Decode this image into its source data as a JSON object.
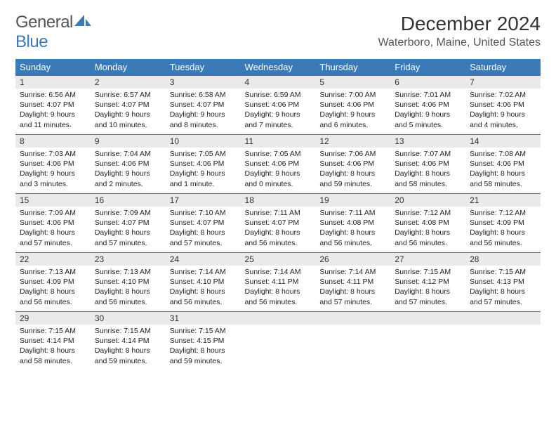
{
  "logo": {
    "text1": "General",
    "text2": "Blue"
  },
  "title": "December 2024",
  "location": "Waterboro, Maine, United States",
  "colors": {
    "header_bg": "#3a7ab8",
    "header_text": "#ffffff",
    "daynum_bg": "#e8eaec",
    "border": "#3a7ab8",
    "body_text": "#222222",
    "logo_gray": "#555555",
    "logo_blue": "#3a7ab8"
  },
  "fonts": {
    "title_size": 28,
    "location_size": 16,
    "header_size": 13,
    "cell_size": 10.5
  },
  "days_of_week": [
    "Sunday",
    "Monday",
    "Tuesday",
    "Wednesday",
    "Thursday",
    "Friday",
    "Saturday"
  ],
  "weeks": [
    [
      {
        "n": "1",
        "sr": "6:56 AM",
        "ss": "4:07 PM",
        "dl": "9 hours and 11 minutes."
      },
      {
        "n": "2",
        "sr": "6:57 AM",
        "ss": "4:07 PM",
        "dl": "9 hours and 10 minutes."
      },
      {
        "n": "3",
        "sr": "6:58 AM",
        "ss": "4:07 PM",
        "dl": "9 hours and 8 minutes."
      },
      {
        "n": "4",
        "sr": "6:59 AM",
        "ss": "4:06 PM",
        "dl": "9 hours and 7 minutes."
      },
      {
        "n": "5",
        "sr": "7:00 AM",
        "ss": "4:06 PM",
        "dl": "9 hours and 6 minutes."
      },
      {
        "n": "6",
        "sr": "7:01 AM",
        "ss": "4:06 PM",
        "dl": "9 hours and 5 minutes."
      },
      {
        "n": "7",
        "sr": "7:02 AM",
        "ss": "4:06 PM",
        "dl": "9 hours and 4 minutes."
      }
    ],
    [
      {
        "n": "8",
        "sr": "7:03 AM",
        "ss": "4:06 PM",
        "dl": "9 hours and 3 minutes."
      },
      {
        "n": "9",
        "sr": "7:04 AM",
        "ss": "4:06 PM",
        "dl": "9 hours and 2 minutes."
      },
      {
        "n": "10",
        "sr": "7:05 AM",
        "ss": "4:06 PM",
        "dl": "9 hours and 1 minute."
      },
      {
        "n": "11",
        "sr": "7:05 AM",
        "ss": "4:06 PM",
        "dl": "9 hours and 0 minutes."
      },
      {
        "n": "12",
        "sr": "7:06 AM",
        "ss": "4:06 PM",
        "dl": "8 hours and 59 minutes."
      },
      {
        "n": "13",
        "sr": "7:07 AM",
        "ss": "4:06 PM",
        "dl": "8 hours and 58 minutes."
      },
      {
        "n": "14",
        "sr": "7:08 AM",
        "ss": "4:06 PM",
        "dl": "8 hours and 58 minutes."
      }
    ],
    [
      {
        "n": "15",
        "sr": "7:09 AM",
        "ss": "4:06 PM",
        "dl": "8 hours and 57 minutes."
      },
      {
        "n": "16",
        "sr": "7:09 AM",
        "ss": "4:07 PM",
        "dl": "8 hours and 57 minutes."
      },
      {
        "n": "17",
        "sr": "7:10 AM",
        "ss": "4:07 PM",
        "dl": "8 hours and 57 minutes."
      },
      {
        "n": "18",
        "sr": "7:11 AM",
        "ss": "4:07 PM",
        "dl": "8 hours and 56 minutes."
      },
      {
        "n": "19",
        "sr": "7:11 AM",
        "ss": "4:08 PM",
        "dl": "8 hours and 56 minutes."
      },
      {
        "n": "20",
        "sr": "7:12 AM",
        "ss": "4:08 PM",
        "dl": "8 hours and 56 minutes."
      },
      {
        "n": "21",
        "sr": "7:12 AM",
        "ss": "4:09 PM",
        "dl": "8 hours and 56 minutes."
      }
    ],
    [
      {
        "n": "22",
        "sr": "7:13 AM",
        "ss": "4:09 PM",
        "dl": "8 hours and 56 minutes."
      },
      {
        "n": "23",
        "sr": "7:13 AM",
        "ss": "4:10 PM",
        "dl": "8 hours and 56 minutes."
      },
      {
        "n": "24",
        "sr": "7:14 AM",
        "ss": "4:10 PM",
        "dl": "8 hours and 56 minutes."
      },
      {
        "n": "25",
        "sr": "7:14 AM",
        "ss": "4:11 PM",
        "dl": "8 hours and 56 minutes."
      },
      {
        "n": "26",
        "sr": "7:14 AM",
        "ss": "4:11 PM",
        "dl": "8 hours and 57 minutes."
      },
      {
        "n": "27",
        "sr": "7:15 AM",
        "ss": "4:12 PM",
        "dl": "8 hours and 57 minutes."
      },
      {
        "n": "28",
        "sr": "7:15 AM",
        "ss": "4:13 PM",
        "dl": "8 hours and 57 minutes."
      }
    ],
    [
      {
        "n": "29",
        "sr": "7:15 AM",
        "ss": "4:14 PM",
        "dl": "8 hours and 58 minutes."
      },
      {
        "n": "30",
        "sr": "7:15 AM",
        "ss": "4:14 PM",
        "dl": "8 hours and 59 minutes."
      },
      {
        "n": "31",
        "sr": "7:15 AM",
        "ss": "4:15 PM",
        "dl": "8 hours and 59 minutes."
      },
      null,
      null,
      null,
      null
    ]
  ],
  "labels": {
    "sunrise": "Sunrise:",
    "sunset": "Sunset:",
    "daylight": "Daylight:"
  }
}
